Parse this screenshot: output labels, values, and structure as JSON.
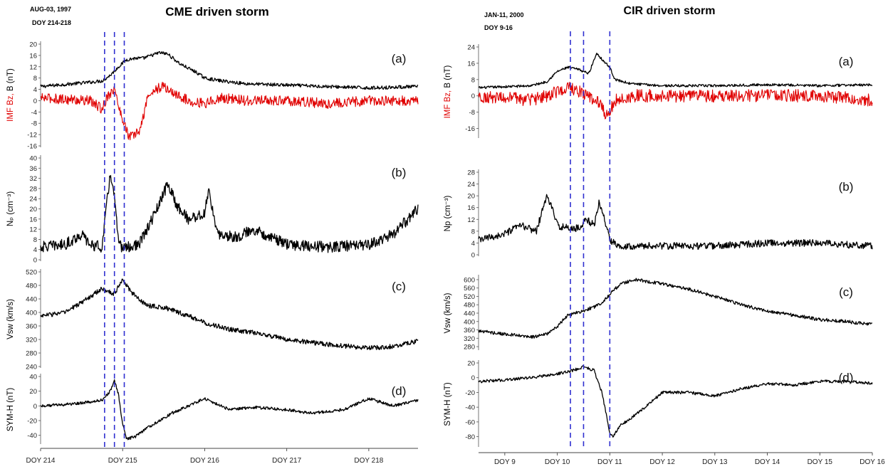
{
  "colors": {
    "black": "#000000",
    "red": "#e00000",
    "dash": "#2f2fd0"
  },
  "chart_data": [
    {
      "type": "line",
      "title": "CME driven storm",
      "date_label": "AUG-03, 1997",
      "doy_label": "DOY 214-218",
      "x_range": [
        214,
        218.6
      ],
      "x_ticks": [
        214,
        215,
        216,
        217,
        218
      ],
      "x_tick_labels": [
        "DOY 214",
        "DOY 215",
        "DOY 216",
        "DOY 217",
        "DOY 218"
      ],
      "event_lines_doy": [
        214.78,
        214.9,
        215.02
      ],
      "panels": [
        {
          "label": "(a)",
          "ylabel_parts": [
            {
              "text": "IMF Bz,",
              "color": "#e00000"
            },
            {
              "text": " B (nT)",
              "color": "#000000"
            }
          ],
          "ylim": [
            -16,
            20
          ],
          "yticks": [
            -16,
            -12,
            -8,
            -4,
            0,
            4,
            8,
            12,
            16,
            20
          ],
          "series": [
            {
              "color": "#000000",
              "x": [
                214,
                214.2,
                214.4,
                214.6,
                214.75,
                214.85,
                214.95,
                215.05,
                215.15,
                215.25,
                215.35,
                215.45,
                215.55,
                215.7,
                215.9,
                216.0,
                216.2,
                216.5,
                217.0,
                217.5,
                218.0,
                218.6
              ],
              "y": [
                5,
                5.5,
                6,
                6.5,
                7,
                9,
                12,
                14.5,
                15,
                15,
                16,
                17,
                16.5,
                13,
                10,
                8,
                7,
                6,
                5.5,
                5,
                4.5,
                5
              ],
              "noise": 0.6
            },
            {
              "color": "#e00000",
              "x": [
                214,
                214.3,
                214.6,
                214.75,
                214.82,
                214.9,
                214.97,
                215.02,
                215.08,
                215.15,
                215.22,
                215.3,
                215.4,
                215.5,
                215.6,
                215.8,
                216.0,
                216.2,
                216.5,
                217.0,
                217.5,
                218.0,
                218.6
              ],
              "y": [
                1,
                0.5,
                0,
                -3,
                2,
                4,
                -4,
                -8,
                -13,
                -12,
                -10,
                1,
                4,
                5,
                3,
                0,
                -1,
                1,
                0,
                0,
                -1,
                0,
                0
              ],
              "noise": 1.8
            }
          ]
        },
        {
          "label": "(b)",
          "ylabel": "Nₚ (cm⁻³)",
          "ylim": [
            0,
            40
          ],
          "yticks": [
            0,
            4,
            8,
            12,
            16,
            20,
            24,
            28,
            32,
            36,
            40
          ],
          "series": [
            {
              "color": "#000000",
              "x": [
                214,
                214.3,
                214.5,
                214.6,
                214.75,
                214.8,
                214.85,
                214.9,
                214.95,
                215.0,
                215.1,
                215.2,
                215.3,
                215.45,
                215.55,
                215.65,
                215.8,
                216.0,
                216.05,
                216.15,
                216.4,
                216.6,
                217.0,
                217.5,
                218.0,
                218.3,
                218.6
              ],
              "y": [
                5,
                6,
                10,
                6,
                5,
                20,
                34,
                25,
                6,
                5,
                5,
                6,
                12,
                22,
                30,
                22,
                16,
                18,
                28,
                10,
                9,
                12,
                6,
                5,
                6,
                10,
                20
              ],
              "noise": 2.2
            }
          ]
        },
        {
          "label": "(c)",
          "ylabel": "Vsw (km/s)",
          "ylim": [
            240,
            520
          ],
          "yticks": [
            240,
            280,
            320,
            360,
            400,
            440,
            480,
            520
          ],
          "series": [
            {
              "color": "#000000",
              "x": [
                214,
                214.3,
                214.5,
                214.75,
                214.9,
                215.0,
                215.1,
                215.3,
                215.5,
                215.8,
                216.0,
                216.3,
                216.6,
                217.0,
                217.5,
                218.0,
                218.3,
                218.6
              ],
              "y": [
                390,
                400,
                430,
                470,
                455,
                500,
                460,
                420,
                415,
                390,
                370,
                350,
                340,
                320,
                305,
                295,
                300,
                315
              ],
              "noise": 7
            }
          ]
        },
        {
          "label": "(d)",
          "ylabel": "SYM-H (nT)",
          "ylim": [
            -50,
            40
          ],
          "yticks": [
            -40,
            -20,
            0,
            20,
            40
          ],
          "series": [
            {
              "color": "#000000",
              "x": [
                214,
                214.3,
                214.6,
                214.75,
                214.85,
                214.9,
                214.95,
                215.0,
                215.05,
                215.15,
                215.3,
                215.6,
                215.8,
                216.0,
                216.1,
                216.3,
                216.6,
                217.0,
                217.3,
                217.7,
                218.0,
                218.3,
                218.6
              ],
              "y": [
                0,
                2,
                5,
                8,
                20,
                35,
                15,
                -25,
                -45,
                -42,
                -30,
                -10,
                0,
                10,
                5,
                -5,
                -2,
                -5,
                -10,
                -5,
                10,
                0,
                8
              ],
              "noise": 2
            }
          ]
        }
      ]
    },
    {
      "type": "line",
      "title": "CIR driven storm",
      "date_label": "JAN-11, 2000",
      "doy_label": "DOY 9-16",
      "x_range": [
        8.5,
        16
      ],
      "x_ticks": [
        9,
        10,
        11,
        12,
        13,
        14,
        15,
        16
      ],
      "x_tick_labels": [
        "DOY 9",
        "DOY 10",
        "DOY 11",
        "DOY 12",
        "DOY 13",
        "DOY 14",
        "DOY 15",
        "DOY 16"
      ],
      "event_lines_doy": [
        10.25,
        10.5,
        11.0
      ],
      "panels": [
        {
          "label": "(a)",
          "ylabel_parts": [
            {
              "text": "IMF Bz,",
              "color": "#e00000"
            },
            {
              "text": " B (nT)",
              "color": "#000000"
            }
          ],
          "ylim": [
            -20,
            24
          ],
          "yticks": [
            -16,
            -8,
            0,
            8,
            16,
            24
          ],
          "series": [
            {
              "color": "#000000",
              "x": [
                8.5,
                9.0,
                9.5,
                9.8,
                10.0,
                10.2,
                10.4,
                10.6,
                10.75,
                10.85,
                11.0,
                11.1,
                11.4,
                12.0,
                13.0,
                14.0,
                15.0,
                16.0
              ],
              "y": [
                4,
                4.5,
                5,
                7,
                12,
                14,
                13,
                11,
                21,
                18,
                14,
                8,
                6,
                5,
                5,
                5.5,
                5,
                5.5
              ],
              "noise": 0.6
            },
            {
              "color": "#e00000",
              "x": [
                8.5,
                9.0,
                9.5,
                9.8,
                10.0,
                10.2,
                10.4,
                10.6,
                10.8,
                10.95,
                11.1,
                11.5,
                12.0,
                13.0,
                14.0,
                15.0,
                16.0
              ],
              "y": [
                0,
                -1,
                -2,
                0,
                2,
                4,
                2,
                0,
                -4,
                -10,
                -2,
                0,
                0,
                0,
                0,
                0,
                -2
              ],
              "noise": 3.2
            }
          ]
        },
        {
          "label": "(b)",
          "ylabel": "Np (cm⁻³)",
          "ylim": [
            0,
            28
          ],
          "yticks": [
            0,
            4,
            8,
            12,
            16,
            20,
            24,
            28
          ],
          "series": [
            {
              "color": "#000000",
              "x": [
                8.5,
                9.0,
                9.3,
                9.6,
                9.8,
                9.9,
                10.0,
                10.2,
                10.4,
                10.55,
                10.7,
                10.8,
                10.9,
                11.0,
                11.2,
                12.0,
                13.0,
                14.0,
                15.0,
                16.0
              ],
              "y": [
                5,
                7,
                10,
                8,
                20,
                16,
                10,
                9,
                9,
                12,
                10,
                18,
                12,
                5,
                3,
                3,
                3,
                4,
                4,
                3
              ],
              "noise": 1.2
            }
          ]
        },
        {
          "label": "(c)",
          "ylabel": "Vsw (km/s)",
          "ylim": [
            270,
            610
          ],
          "yticks": [
            280,
            320,
            360,
            400,
            440,
            480,
            520,
            560,
            600
          ],
          "series": [
            {
              "color": "#000000",
              "x": [
                8.5,
                9.0,
                9.5,
                9.8,
                10.0,
                10.2,
                10.5,
                10.8,
                11.0,
                11.2,
                11.5,
                12.0,
                12.5,
                13.0,
                13.5,
                14.0,
                14.5,
                15.0,
                15.5,
                16.0
              ],
              "y": [
                355,
                340,
                325,
                340,
                375,
                430,
                450,
                480,
                530,
                580,
                600,
                580,
                555,
                520,
                480,
                450,
                430,
                410,
                400,
                385
              ],
              "noise": 8
            }
          ]
        },
        {
          "label": "(d)",
          "ylabel": "SYM-H (nT)",
          "ylim": [
            -92,
            20
          ],
          "yticks": [
            -80,
            -60,
            -40,
            -20,
            0,
            20
          ],
          "series": [
            {
              "color": "#000000",
              "x": [
                8.5,
                9.0,
                9.5,
                10.0,
                10.3,
                10.5,
                10.7,
                10.85,
                11.0,
                11.05,
                11.2,
                11.5,
                12.0,
                12.5,
                13.0,
                13.5,
                14.0,
                14.5,
                15.0,
                15.5,
                16.0
              ],
              "y": [
                -5,
                -3,
                0,
                5,
                10,
                15,
                10,
                -20,
                -75,
                -80,
                -65,
                -50,
                -20,
                -20,
                -25,
                -15,
                -8,
                -10,
                -5,
                -5,
                -8
              ],
              "noise": 2
            }
          ]
        }
      ]
    }
  ]
}
